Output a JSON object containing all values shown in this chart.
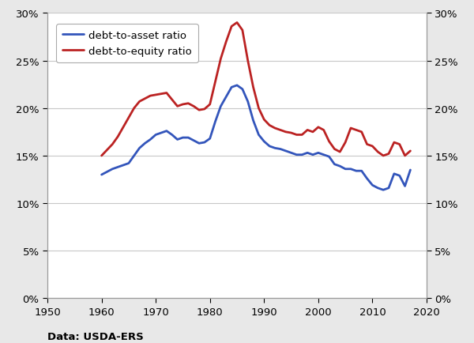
{
  "source_text": "Data: USDA-ERS",
  "xlim": [
    1950,
    2020
  ],
  "ylim": [
    0,
    0.3
  ],
  "xticks": [
    1950,
    1960,
    1970,
    1980,
    1990,
    2000,
    2010,
    2020
  ],
  "yticks": [
    0.0,
    0.05,
    0.1,
    0.15,
    0.2,
    0.25,
    0.3
  ],
  "figure_bg_color": "#e8e8e8",
  "plot_bg_color": "#ffffff",
  "line1_color": "#3355bb",
  "line2_color": "#bb2222",
  "line1_label": "debt-to-asset ratio",
  "line2_label": "debt-to-equity ratio",
  "line_width": 2.0,
  "debt_to_asset": {
    "years": [
      1960,
      1961,
      1962,
      1963,
      1964,
      1965,
      1966,
      1967,
      1968,
      1969,
      1970,
      1971,
      1972,
      1973,
      1974,
      1975,
      1976,
      1977,
      1978,
      1979,
      1980,
      1981,
      1982,
      1983,
      1984,
      1985,
      1986,
      1987,
      1988,
      1989,
      1990,
      1991,
      1992,
      1993,
      1994,
      1995,
      1996,
      1997,
      1998,
      1999,
      2000,
      2001,
      2002,
      2003,
      2004,
      2005,
      2006,
      2007,
      2008,
      2009,
      2010,
      2011,
      2012,
      2013,
      2014,
      2015,
      2016,
      2017
    ],
    "values": [
      0.13,
      0.133,
      0.136,
      0.138,
      0.14,
      0.142,
      0.15,
      0.158,
      0.163,
      0.167,
      0.172,
      0.174,
      0.176,
      0.172,
      0.167,
      0.169,
      0.169,
      0.166,
      0.163,
      0.164,
      0.168,
      0.186,
      0.202,
      0.212,
      0.222,
      0.224,
      0.22,
      0.207,
      0.187,
      0.172,
      0.165,
      0.16,
      0.158,
      0.157,
      0.155,
      0.153,
      0.151,
      0.151,
      0.153,
      0.151,
      0.153,
      0.151,
      0.149,
      0.141,
      0.139,
      0.136,
      0.136,
      0.134,
      0.134,
      0.126,
      0.119,
      0.116,
      0.114,
      0.116,
      0.131,
      0.129,
      0.118,
      0.135
    ]
  },
  "debt_to_equity": {
    "years": [
      1960,
      1961,
      1962,
      1963,
      1964,
      1965,
      1966,
      1967,
      1968,
      1969,
      1970,
      1971,
      1972,
      1973,
      1974,
      1975,
      1976,
      1977,
      1978,
      1979,
      1980,
      1981,
      1982,
      1983,
      1984,
      1985,
      1986,
      1987,
      1988,
      1989,
      1990,
      1991,
      1992,
      1993,
      1994,
      1995,
      1996,
      1997,
      1998,
      1999,
      2000,
      2001,
      2002,
      2003,
      2004,
      2005,
      2006,
      2007,
      2008,
      2009,
      2010,
      2011,
      2012,
      2013,
      2014,
      2015,
      2016,
      2017
    ],
    "values": [
      0.15,
      0.156,
      0.162,
      0.17,
      0.18,
      0.19,
      0.2,
      0.207,
      0.21,
      0.213,
      0.214,
      0.215,
      0.216,
      0.209,
      0.202,
      0.204,
      0.205,
      0.202,
      0.198,
      0.199,
      0.204,
      0.228,
      0.252,
      0.27,
      0.286,
      0.29,
      0.282,
      0.25,
      0.222,
      0.2,
      0.188,
      0.182,
      0.179,
      0.177,
      0.175,
      0.174,
      0.172,
      0.172,
      0.177,
      0.175,
      0.18,
      0.177,
      0.165,
      0.157,
      0.154,
      0.164,
      0.179,
      0.177,
      0.175,
      0.162,
      0.16,
      0.154,
      0.15,
      0.152,
      0.164,
      0.162,
      0.15,
      0.155
    ]
  }
}
